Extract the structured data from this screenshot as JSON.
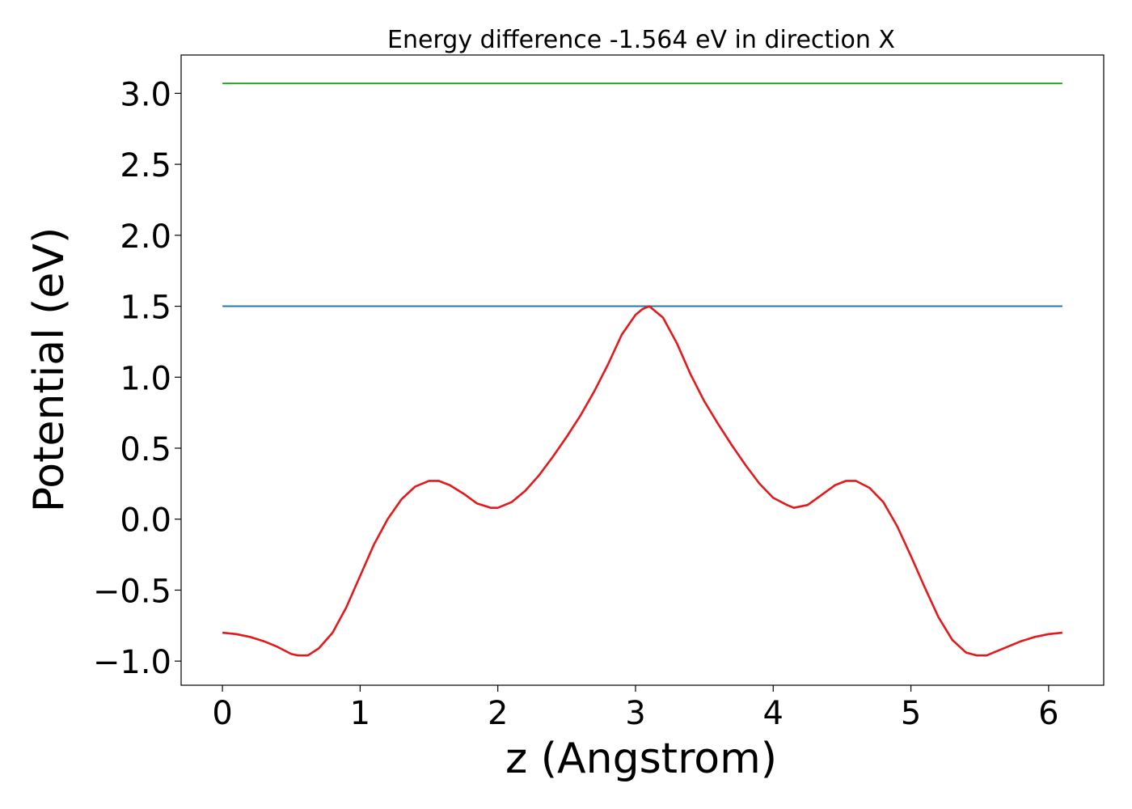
{
  "chart_data": {
    "type": "line",
    "title": "Energy difference -1.564 eV in direction X",
    "xlabel": "z (Angstrom)",
    "ylabel": "Potential (eV)",
    "xlim": [
      -0.3,
      6.4
    ],
    "ylim": [
      -1.17,
      3.27
    ],
    "xticks": [
      0,
      1,
      2,
      3,
      4,
      5,
      6
    ],
    "xtick_labels": [
      "0",
      "1",
      "2",
      "3",
      "4",
      "5",
      "6"
    ],
    "yticks": [
      3.0,
      2.5,
      2.0,
      1.5,
      1.0,
      0.5,
      0.0,
      -0.5,
      -1.0
    ],
    "ytick_labels": [
      "3.0",
      "2.5",
      "2.0",
      "1.5",
      "1.0",
      "0.5",
      "0.0",
      "−0.5",
      "−1.0"
    ],
    "grid": false,
    "legend": "none",
    "series": [
      {
        "color": "#2ca02c",
        "x": [
          0,
          6.1
        ],
        "y": [
          3.07,
          3.07
        ]
      },
      {
        "color": "#1f77b4",
        "x": [
          0,
          6.1
        ],
        "y": [
          1.5,
          1.5
        ]
      },
      {
        "color": "#e31a1c",
        "x": [
          0.0,
          0.1,
          0.2,
          0.3,
          0.4,
          0.5,
          0.55,
          0.62,
          0.7,
          0.8,
          0.9,
          1.0,
          1.1,
          1.2,
          1.3,
          1.4,
          1.5,
          1.57,
          1.65,
          1.75,
          1.85,
          1.95,
          2.0,
          2.1,
          2.2,
          2.3,
          2.4,
          2.5,
          2.6,
          2.7,
          2.8,
          2.9,
          3.0,
          3.05,
          3.1,
          3.2,
          3.3,
          3.4,
          3.5,
          3.6,
          3.7,
          3.8,
          3.9,
          4.0,
          4.1,
          4.15,
          4.25,
          4.35,
          4.45,
          4.53,
          4.6,
          4.7,
          4.8,
          4.9,
          5.0,
          5.1,
          5.2,
          5.3,
          5.4,
          5.48,
          5.55,
          5.6,
          5.7,
          5.8,
          5.9,
          6.0,
          6.1
        ],
        "y": [
          -0.8,
          -0.81,
          -0.83,
          -0.86,
          -0.9,
          -0.95,
          -0.96,
          -0.96,
          -0.91,
          -0.8,
          -0.62,
          -0.4,
          -0.18,
          0.0,
          0.14,
          0.23,
          0.27,
          0.27,
          0.24,
          0.18,
          0.11,
          0.08,
          0.08,
          0.12,
          0.2,
          0.31,
          0.44,
          0.58,
          0.73,
          0.9,
          1.09,
          1.3,
          1.44,
          1.48,
          1.5,
          1.42,
          1.24,
          1.02,
          0.83,
          0.67,
          0.52,
          0.38,
          0.25,
          0.15,
          0.1,
          0.08,
          0.1,
          0.17,
          0.24,
          0.27,
          0.27,
          0.22,
          0.12,
          -0.05,
          -0.26,
          -0.48,
          -0.69,
          -0.85,
          -0.94,
          -0.96,
          -0.96,
          -0.94,
          -0.9,
          -0.86,
          -0.83,
          -0.81,
          -0.8
        ]
      }
    ]
  }
}
